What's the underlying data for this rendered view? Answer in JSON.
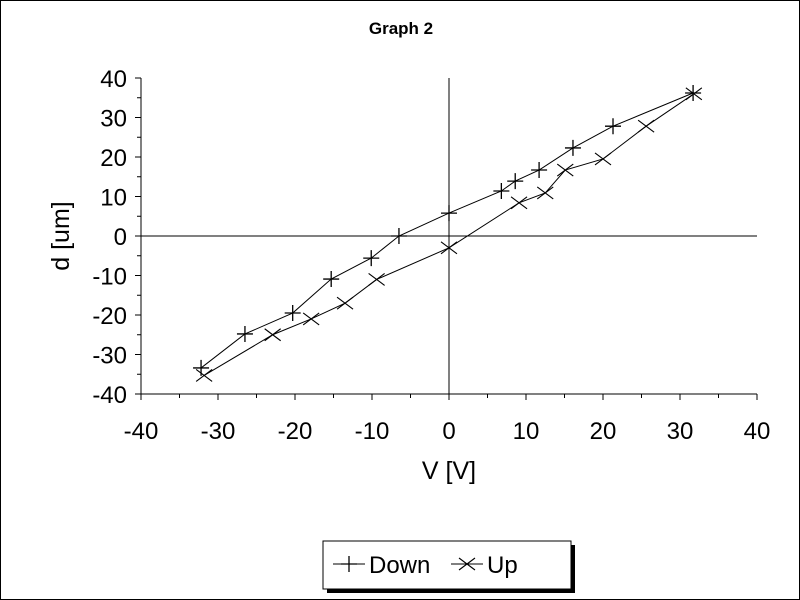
{
  "chart_data": {
    "type": "scatter",
    "title": "Graph 2",
    "xlabel": "V [V]",
    "ylabel": "d [um]",
    "xlim": [
      -40,
      40
    ],
    "ylim": [
      -40,
      40
    ],
    "xticks": [
      -40,
      -30,
      -20,
      -10,
      0,
      10,
      20,
      30,
      40
    ],
    "yticks": [
      -40,
      -30,
      -20,
      -10,
      0,
      10,
      20,
      30,
      40
    ],
    "grid": false,
    "legend_position": "bottom-center",
    "series": [
      {
        "name": "Down",
        "marker": "plus",
        "x": [
          31.7,
          21.3,
          16.1,
          11.7,
          8.6,
          6.8,
          0,
          -6.5,
          -10.1,
          -15.3,
          -20.3,
          -26.5,
          -32.2
        ],
        "y": [
          36.2,
          27.8,
          22.3,
          16.7,
          13.9,
          11.4,
          5.8,
          0,
          -5.6,
          -10.9,
          -19.5,
          -24.8,
          -33.4
        ]
      },
      {
        "name": "Up",
        "marker": "cross",
        "x": [
          -31.8,
          -22.9,
          -17.9,
          -13.5,
          -9.4,
          0,
          9.1,
          12.5,
          15.1,
          20,
          25.6,
          31.8
        ],
        "y": [
          -35.3,
          -25,
          -21,
          -17,
          -11,
          -3,
          8.4,
          10.9,
          16.7,
          19.5,
          27.8,
          36
        ]
      }
    ]
  }
}
